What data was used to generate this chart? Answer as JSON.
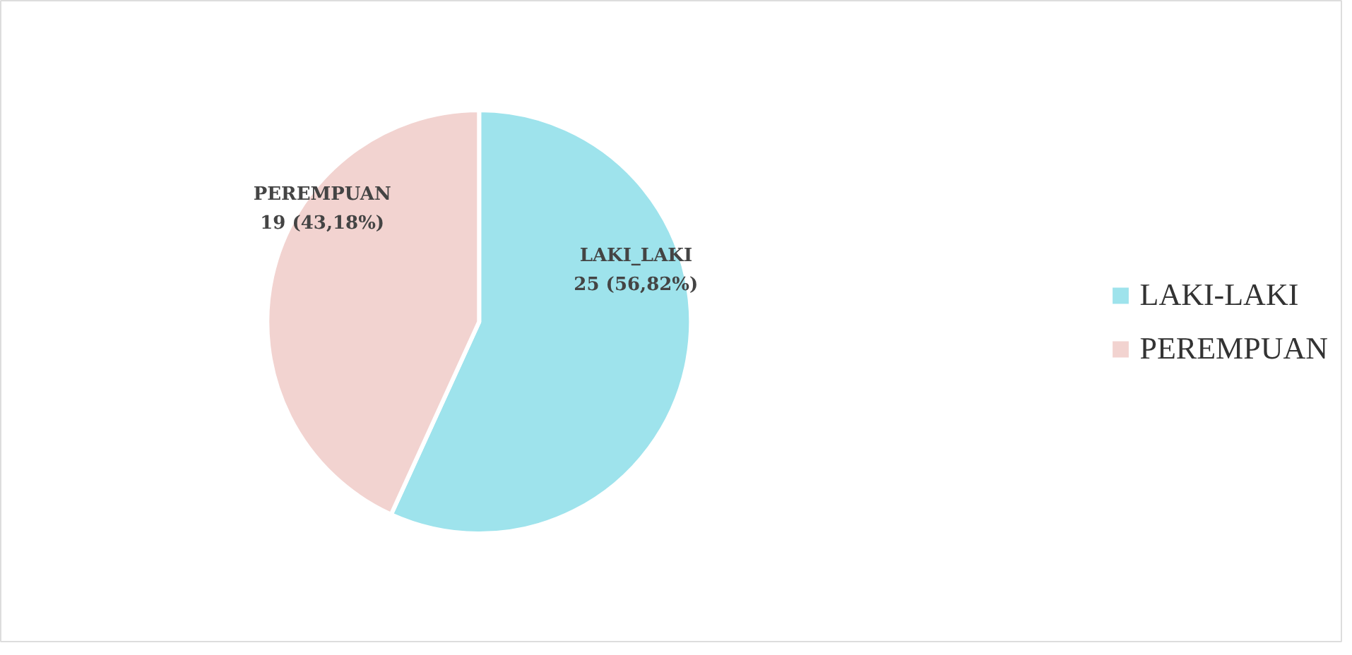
{
  "chart_data": {
    "type": "pie",
    "categories": [
      "LAKI-LAKI",
      "PEREMPUAN"
    ],
    "values": [
      25,
      19
    ],
    "colors": [
      "#9ee3ec",
      "#f2d3d0"
    ],
    "value_labels": [
      "LAKI_LAKI\n25 (56,82%)",
      "PEREMPUAN\n19 (43,18%)"
    ],
    "legend": "right"
  }
}
